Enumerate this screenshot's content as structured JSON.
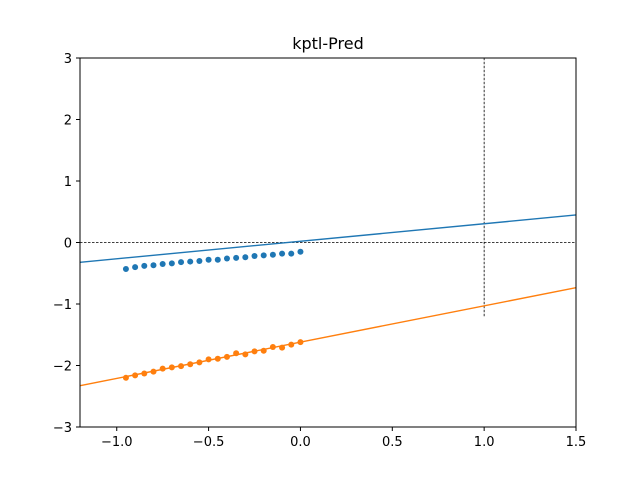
{
  "chart_data": {
    "type": "scatter",
    "title": "kptl-Pred",
    "xlabel": "",
    "ylabel": "",
    "xlim": [
      -1.2,
      1.5
    ],
    "ylim": [
      -3,
      3
    ],
    "x_ticks": [
      -1.0,
      -0.5,
      0.0,
      0.5,
      1.0,
      1.5
    ],
    "x_tick_labels": [
      "−1.0",
      "−0.5",
      "0.0",
      "0.5",
      "1.0",
      "1.5"
    ],
    "y_ticks": [
      -3,
      -2,
      -1,
      0,
      1,
      2,
      3
    ],
    "y_tick_labels": [
      "−3",
      "−2",
      "−1",
      "0",
      "1",
      "2",
      "3"
    ],
    "grid": false,
    "reference_lines": {
      "horizontal": {
        "y": 0,
        "style": "dashed",
        "color": "#000000"
      },
      "vertical": {
        "x": 1.0,
        "y_range": [
          -1.2,
          3
        ],
        "style": "dashed",
        "color": "#000000"
      }
    },
    "series": [
      {
        "color": "#1f77b4",
        "fit_line": {
          "slope": 0.285,
          "intercept": 0.02,
          "x_range": [
            -1.2,
            1.5
          ]
        },
        "x": [
          -0.95,
          -0.9,
          -0.85,
          -0.8,
          -0.75,
          -0.7,
          -0.65,
          -0.6,
          -0.55,
          -0.5,
          -0.45,
          -0.4,
          -0.35,
          -0.3,
          -0.25,
          -0.2,
          -0.15,
          -0.1,
          -0.05,
          0.0
        ],
        "y": [
          -0.43,
          -0.4,
          -0.38,
          -0.37,
          -0.35,
          -0.34,
          -0.32,
          -0.31,
          -0.3,
          -0.28,
          -0.28,
          -0.26,
          -0.25,
          -0.24,
          -0.22,
          -0.21,
          -0.2,
          -0.18,
          -0.18,
          -0.15
        ]
      },
      {
        "color": "#ff7f0e",
        "fit_line": {
          "slope": 0.59,
          "intercept": -1.62,
          "x_range": [
            -1.2,
            1.5
          ]
        },
        "x": [
          -0.95,
          -0.9,
          -0.85,
          -0.8,
          -0.75,
          -0.7,
          -0.65,
          -0.6,
          -0.55,
          -0.5,
          -0.45,
          -0.4,
          -0.35,
          -0.3,
          -0.25,
          -0.2,
          -0.15,
          -0.1,
          -0.05,
          0.0
        ],
        "y": [
          -2.2,
          -2.16,
          -2.13,
          -2.1,
          -2.05,
          -2.03,
          -2.01,
          -1.98,
          -1.95,
          -1.9,
          -1.89,
          -1.86,
          -1.8,
          -1.82,
          -1.77,
          -1.76,
          -1.7,
          -1.71,
          -1.66,
          -1.62
        ]
      }
    ]
  }
}
